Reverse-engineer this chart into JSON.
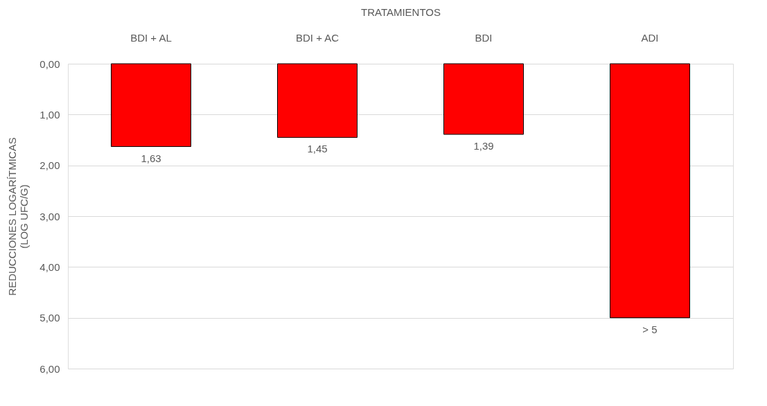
{
  "chart_data": {
    "type": "bar",
    "xlabel": "TRATAMIENTOS",
    "ylabel": "REDUCCIONES LOGARÍTMICAS\n(LOG UFC/G)",
    "categories": [
      "BDI + AL",
      "BDI + AC",
      "BDI",
      "ADI"
    ],
    "values": [
      1.63,
      1.45,
      1.39,
      5
    ],
    "value_labels": [
      "1,63",
      "1,45",
      "1,39",
      "> 5"
    ],
    "color": "#ff0000",
    "ylim": [
      6,
      0
    ],
    "yticks": [
      {
        "value": 0,
        "label": "0,00"
      },
      {
        "value": 1,
        "label": "1,00"
      },
      {
        "value": 2,
        "label": "2,00"
      },
      {
        "value": 3,
        "label": "3,00"
      },
      {
        "value": 4,
        "label": "4,00"
      },
      {
        "value": 5,
        "label": "5,00"
      },
      {
        "value": 6,
        "label": "6,00"
      }
    ],
    "grid": "y"
  }
}
